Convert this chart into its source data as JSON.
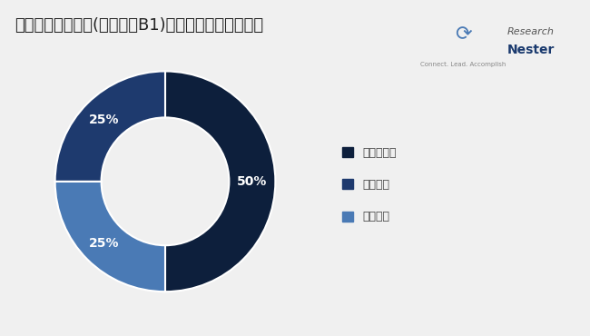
{
  "title": "チアミン一硝酸塩(ビタミンB1)市場一タイプによる類",
  "slices": [
    50,
    25,
    25
  ],
  "labels": [
    "50%",
    "25%",
    "25%"
  ],
  "colors": [
    "#0d1f3c",
    "#4a7ab5",
    "#1e3a6e"
  ],
  "legend_labels": [
    "医薬品等級",
    "食品等級",
    "飼料等級"
  ],
  "legend_colors": [
    "#0d1f3c",
    "#1e3a6e",
    "#4a7ab5"
  ],
  "background_color": "#f0f0f0",
  "title_fontsize": 13,
  "label_fontsize": 10,
  "legend_fontsize": 9,
  "donut_width": 0.42,
  "startangle": 90
}
